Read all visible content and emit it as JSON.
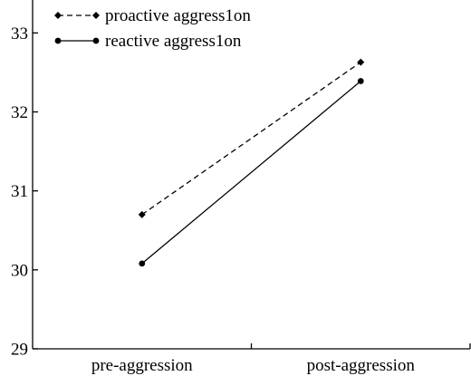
{
  "chart_data": {
    "type": "line",
    "categories": [
      "pre-aggression",
      "post-aggression"
    ],
    "series": [
      {
        "name": "proactive aggress1on",
        "values": [
          30.7,
          32.63
        ],
        "line_style": "dashed",
        "marker": "diamond"
      },
      {
        "name": "reactive aggress1on",
        "values": [
          30.08,
          32.39
        ],
        "line_style": "solid",
        "marker": "circle"
      }
    ],
    "yticks": [
      "29",
      "30",
      "31",
      "32",
      "33"
    ],
    "ylim": [
      29,
      33.4
    ],
    "title": "",
    "xlabel": "",
    "ylabel": "",
    "legend_position": "top-left",
    "grid": false,
    "color": "#000000"
  }
}
